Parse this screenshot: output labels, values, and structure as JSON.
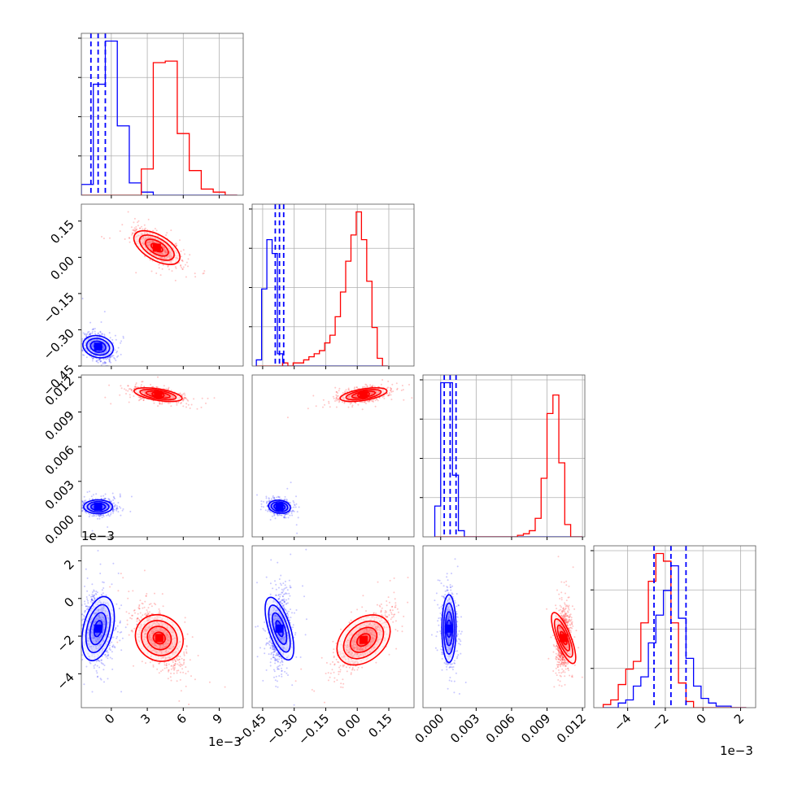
{
  "colors": {
    "blue": "#0000ff",
    "red": "#ff0000",
    "grid": "#b0b0b0",
    "axes": "#000000"
  },
  "offsets": {
    "x0": "1e−3",
    "y3": "1e−3",
    "x3": "1e−3"
  },
  "chart_data": [
    {
      "type": "histogram",
      "panel": "hist-p0",
      "xlim": [
        -2.5,
        11.0
      ],
      "ylim": [
        0,
        1.05
      ],
      "bins": [
        -2.5,
        -1.5,
        -0.5,
        0.5,
        1.5,
        2.5,
        3.5,
        4.5,
        5.5,
        6.5,
        7.5,
        8.5,
        9.5,
        10.5
      ],
      "series": [
        {
          "color": "#0000ff",
          "values": [
            0.07,
            0.72,
            1.0,
            0.45,
            0.08,
            0.02,
            0.0,
            0.0,
            0.0,
            0.0,
            0.0,
            0.0,
            0.0
          ]
        },
        {
          "color": "#ff0000",
          "values": [
            0.0,
            0.0,
            0.0,
            0.0,
            0.0,
            0.17,
            0.86,
            0.87,
            0.4,
            0.16,
            0.04,
            0.02,
            0.0
          ]
        }
      ],
      "quantile_lines": [
        -1.7,
        -1.1,
        -0.5
      ],
      "grid": true
    },
    {
      "type": "histogram",
      "panel": "hist-p1",
      "xlim": [
        -0.5,
        0.27
      ],
      "ylim": [
        0,
        1.05
      ],
      "bins": [
        -0.48,
        -0.455,
        -0.43,
        -0.405,
        -0.38,
        -0.355,
        -0.33,
        -0.305,
        -0.28,
        -0.255,
        -0.23,
        -0.205,
        -0.18,
        -0.155,
        -0.13,
        -0.105,
        -0.08,
        -0.055,
        -0.03,
        -0.005,
        0.02,
        0.045,
        0.07,
        0.095,
        0.12,
        0.145
      ],
      "series": [
        {
          "color": "#0000ff",
          "values": [
            0.04,
            0.5,
            0.82,
            0.73,
            0.08,
            0.0,
            0.0,
            0.0,
            0.0,
            0.0,
            0.0,
            0.0,
            0.0,
            0.0,
            0.0,
            0.0,
            0.0,
            0.0,
            0.0,
            0.0,
            0.0,
            0.0,
            0.0,
            0.0,
            0.0
          ]
        },
        {
          "color": "#ff0000",
          "values": [
            0.0,
            0.0,
            0.0,
            0.0,
            0.0,
            0.02,
            0.0,
            0.02,
            0.02,
            0.04,
            0.06,
            0.08,
            0.1,
            0.15,
            0.2,
            0.32,
            0.48,
            0.68,
            0.85,
            1.0,
            0.82,
            0.55,
            0.25,
            0.05,
            0.0
          ]
        }
      ],
      "quantile_lines": [
        -0.39,
        -0.37,
        -0.35
      ],
      "grid": true
    },
    {
      "type": "histogram",
      "panel": "hist-p2",
      "xlim": [
        -0.0015,
        0.0122
      ],
      "ylim": [
        0,
        1.05
      ],
      "bins": [
        -0.0005,
        0.0,
        0.0005,
        0.001,
        0.0015,
        0.002,
        0.0025,
        0.003,
        0.0035,
        0.004,
        0.0045,
        0.005,
        0.0055,
        0.006,
        0.0065,
        0.007,
        0.0075,
        0.008,
        0.0085,
        0.009,
        0.0095,
        0.01,
        0.0105,
        0.011,
        0.0115,
        0.012
      ],
      "series": [
        {
          "color": "#0000ff",
          "values": [
            0.2,
            1.0,
            1.0,
            0.4,
            0.04,
            0.0,
            0.0,
            0.0,
            0.0,
            0.0,
            0.0,
            0.0,
            0.0,
            0.0,
            0.0,
            0.0,
            0.0,
            0.0,
            0.0,
            0.0,
            0.0,
            0.0,
            0.0,
            0.0,
            0.0
          ]
        },
        {
          "color": "#ff0000",
          "values": [
            0.0,
            0.0,
            0.0,
            0.0,
            0.0,
            0.0,
            0.0,
            0.0,
            0.0,
            0.0,
            0.0,
            0.0,
            0.0,
            0.0,
            0.01,
            0.02,
            0.04,
            0.12,
            0.38,
            0.8,
            0.92,
            0.48,
            0.08,
            0.0,
            0.0
          ]
        }
      ],
      "quantile_lines": [
        0.0003,
        0.0008,
        0.0013
      ],
      "grid": true
    },
    {
      "type": "histogram",
      "panel": "hist-p3",
      "xlim": [
        -5.8,
        2.8
      ],
      "ylim": [
        0,
        1.05
      ],
      "bins": [
        -5.3,
        -4.9,
        -4.5,
        -4.1,
        -3.7,
        -3.3,
        -2.9,
        -2.5,
        -2.1,
        -1.7,
        -1.3,
        -0.9,
        -0.5,
        -0.1,
        0.3,
        0.7,
        1.1,
        1.5,
        1.9,
        2.3
      ],
      "series": [
        {
          "color": "#0000ff",
          "values": [
            0.0,
            0.0,
            0.03,
            0.05,
            0.14,
            0.2,
            0.42,
            0.6,
            0.76,
            0.92,
            0.58,
            0.32,
            0.14,
            0.06,
            0.03,
            0.01,
            0.01,
            0.0,
            0.0
          ]
        },
        {
          "color": "#ff0000",
          "values": [
            0.02,
            0.05,
            0.15,
            0.25,
            0.3,
            0.55,
            0.82,
            1.0,
            0.95,
            0.55,
            0.16,
            0.04,
            0.0,
            0.0,
            0.0,
            0.0,
            0.0,
            0.0,
            0.0
          ]
        }
      ],
      "quantile_lines": [
        -2.6,
        -1.7,
        -0.9
      ],
      "grid": true
    },
    {
      "type": "scatter",
      "panel": "pair-p0-p1",
      "xlim": [
        -2.5,
        11.0
      ],
      "ylim": [
        -0.45,
        0.22
      ],
      "clusters": [
        {
          "color": "#0000ff",
          "center": [
            -1.1,
            -0.37
          ],
          "spread": [
            0.6,
            0.025
          ],
          "corr": -0.3,
          "points": 900
        },
        {
          "color": "#ff0000",
          "center": [
            3.8,
            0.04
          ],
          "spread": [
            0.9,
            0.035
          ],
          "corr": -0.75,
          "points": 1000
        }
      ],
      "grid": false
    },
    {
      "type": "scatter",
      "panel": "pair-p0-p2",
      "xlim": [
        -2.5,
        11.0
      ],
      "ylim": [
        -0.0018,
        0.0122
      ],
      "clusters": [
        {
          "color": "#0000ff",
          "center": [
            -1.1,
            0.0008
          ],
          "spread": [
            0.6,
            0.0003
          ],
          "corr": 0.0,
          "points": 900
        },
        {
          "color": "#ff0000",
          "center": [
            3.9,
            0.0105
          ],
          "spread": [
            0.9,
            0.0003
          ],
          "corr": -0.5,
          "points": 1000
        }
      ],
      "grid": false
    },
    {
      "type": "scatter",
      "panel": "pair-p1-p2",
      "xlim": [
        -0.5,
        0.27
      ],
      "ylim": [
        -0.0018,
        0.0122
      ],
      "clusters": [
        {
          "color": "#0000ff",
          "center": [
            -0.37,
            0.0008
          ],
          "spread": [
            0.025,
            0.0003
          ],
          "corr": -0.2,
          "points": 900
        },
        {
          "color": "#ff0000",
          "center": [
            0.03,
            0.0105
          ],
          "spread": [
            0.05,
            0.0003
          ],
          "corr": 0.5,
          "points": 1000
        }
      ],
      "grid": false
    },
    {
      "type": "scatter",
      "panel": "pair-p0-p3",
      "xlim": [
        -2.5,
        11.0
      ],
      "ylim": [
        -5.8,
        2.8
      ],
      "clusters": [
        {
          "color": "#0000ff",
          "center": [
            -1.1,
            -1.6
          ],
          "spread": [
            0.6,
            0.9
          ],
          "corr": -0.1,
          "points": 900
        },
        {
          "color": "#ff0000",
          "center": [
            4.0,
            -2.1
          ],
          "spread": [
            0.9,
            0.75
          ],
          "corr": -0.6,
          "points": 1000
        }
      ],
      "grid": false
    },
    {
      "type": "scatter",
      "panel": "pair-p1-p3",
      "xlim": [
        -0.5,
        0.27
      ],
      "ylim": [
        -5.8,
        2.8
      ],
      "clusters": [
        {
          "color": "#0000ff",
          "center": [
            -0.37,
            -1.6
          ],
          "spread": [
            0.025,
            0.9
          ],
          "corr": 0.1,
          "points": 900
        },
        {
          "color": "#ff0000",
          "center": [
            0.03,
            -2.2
          ],
          "spread": [
            0.06,
            0.75
          ],
          "corr": 0.75,
          "points": 1000
        }
      ],
      "grid": false
    },
    {
      "type": "scatter",
      "panel": "pair-p2-p3",
      "xlim": [
        -0.0015,
        0.0122
      ],
      "ylim": [
        -5.8,
        2.8
      ],
      "clusters": [
        {
          "color": "#0000ff",
          "center": [
            0.0007,
            -1.6
          ],
          "spread": [
            0.0003,
            0.9
          ],
          "corr": 0.0,
          "points": 900
        },
        {
          "color": "#ff0000",
          "center": [
            0.0104,
            -2.1
          ],
          "spread": [
            0.0003,
            0.75
          ],
          "corr": 0.1,
          "points": 1000
        }
      ],
      "grid": false
    }
  ],
  "axes": {
    "p0": {
      "ticks": [
        0,
        3,
        6,
        9
      ],
      "labels": [
        "0",
        "3",
        "6",
        "9"
      ]
    },
    "p1": {
      "ticks": [
        -0.45,
        -0.3,
        -0.15,
        0.0,
        0.15
      ],
      "labels": [
        "−0.45",
        "−0.30",
        "−0.15",
        "0.00",
        "0.15"
      ]
    },
    "p2": {
      "ticks": [
        0.0,
        0.003,
        0.006,
        0.009,
        0.012
      ],
      "labels": [
        "0.000",
        "0.003",
        "0.006",
        "0.009",
        "0.012"
      ]
    },
    "p3": {
      "ticks": [
        -4,
        -2,
        0,
        2
      ],
      "labels": [
        "−4",
        "−2",
        "0",
        "2"
      ]
    }
  }
}
